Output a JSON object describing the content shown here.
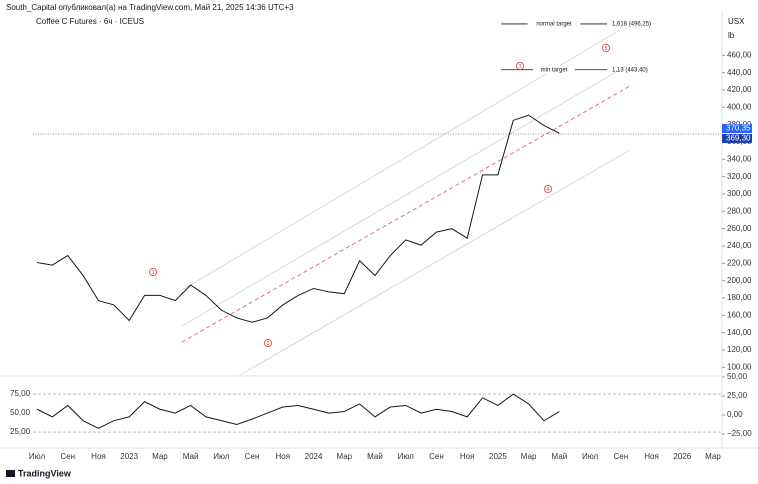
{
  "header": "South_Capital опубликовал(а) на TradingView.com, Май 21, 2025 14:36 UTC+3",
  "footer": "TradingView",
  "chart_data": [
    {
      "type": "line",
      "title": "Coffee C Futures · 6ч · ICEUS",
      "currency": "USX",
      "unit": "lb",
      "categories": [
        "Июл",
        null,
        "Сен",
        null,
        "Ноя",
        null,
        "2023",
        null,
        "Мар",
        null,
        "Май",
        null,
        "Июл",
        null,
        "Сен",
        null,
        "Ноя",
        null,
        "2024",
        null,
        "Мар",
        null,
        "Май",
        null,
        "Июл",
        null,
        "Сен",
        null,
        "Ноя",
        null,
        "2025",
        null,
        "Мар",
        null,
        "Май",
        null,
        "Июл",
        null,
        "Сен",
        null,
        "Ноя",
        null,
        "2026",
        null,
        "Мар"
      ],
      "series": [
        {
          "color": "#131722",
          "values": [
            221,
            218,
            229,
            206,
            177,
            172,
            154,
            183,
            183,
            177,
            195,
            183,
            166,
            157,
            152,
            157,
            172,
            183,
            191,
            187,
            185,
            223,
            206,
            229,
            247,
            241,
            256,
            260,
            249,
            322,
            322,
            385,
            391,
            379,
            370,
            null,
            null,
            null,
            null,
            null,
            null,
            null,
            null,
            null,
            null
          ]
        }
      ],
      "ylim": [
        90,
        510
      ],
      "yticks": [
        {
          "value": 100,
          "label": "100,00"
        },
        {
          "value": 120,
          "label": "120,00"
        },
        {
          "value": 140,
          "label": "140,00"
        },
        {
          "value": 160,
          "label": "160,00"
        },
        {
          "value": 180,
          "label": "180,00"
        },
        {
          "value": 200,
          "label": "200,00"
        },
        {
          "value": 220,
          "label": "220,00"
        },
        {
          "value": 240,
          "label": "240,00"
        },
        {
          "value": 260,
          "label": "260,00"
        },
        {
          "value": 280,
          "label": "280,00"
        },
        {
          "value": 300,
          "label": "300,00"
        },
        {
          "value": 320,
          "label": "320,00"
        },
        {
          "value": 340,
          "label": "340,00"
        },
        {
          "value": 360,
          "label": "360,00"
        },
        {
          "value": 380,
          "label": "380,00"
        },
        {
          "value": 400,
          "label": "400,00"
        },
        {
          "value": 420,
          "label": "420,00"
        },
        {
          "value": 440,
          "label": "440,00"
        },
        {
          "value": 460,
          "label": "460,00"
        }
      ],
      "price_labels": [
        {
          "value": 370.35,
          "label": "370,35",
          "color": "#2962ff"
        },
        {
          "value": 369.3,
          "label": "369,30",
          "color": "#1e3fa8"
        }
      ],
      "targets": [
        {
          "name": "normal target",
          "value": 496.25,
          "label": "1,618 (496,25)"
        },
        {
          "name": "min target",
          "value": 443.4,
          "label": "1,13 (443,40)"
        }
      ],
      "wave_labels": [
        "1",
        "2",
        "3",
        "4",
        "5"
      ]
    },
    {
      "type": "line",
      "series": [
        {
          "color": "#131722",
          "values": [
            55,
            45,
            60,
            40,
            30,
            40,
            45,
            65,
            55,
            50,
            60,
            45,
            40,
            35,
            42,
            50,
            58,
            60,
            55,
            50,
            52,
            62,
            45,
            58,
            60,
            50,
            55,
            52,
            45,
            70,
            60,
            75,
            62,
            40,
            52,
            null,
            null,
            null,
            null,
            null,
            null,
            null,
            null,
            null,
            null
          ]
        }
      ],
      "ylim": [
        8,
        104
      ],
      "yticks": [
        {
          "value": 25,
          "label": "25,00"
        },
        {
          "value": 50,
          "label": "50,00"
        },
        {
          "value": 75,
          "label": "75,00"
        }
      ],
      "y2lim": [
        -39.5,
        56.6
      ],
      "y2ticks": [
        {
          "value": -25,
          "label": "−25,00"
        },
        {
          "value": 0,
          "label": "0,00"
        },
        {
          "value": 25,
          "label": "25,00"
        },
        {
          "value": 50,
          "label": "50,00"
        }
      ]
    }
  ]
}
